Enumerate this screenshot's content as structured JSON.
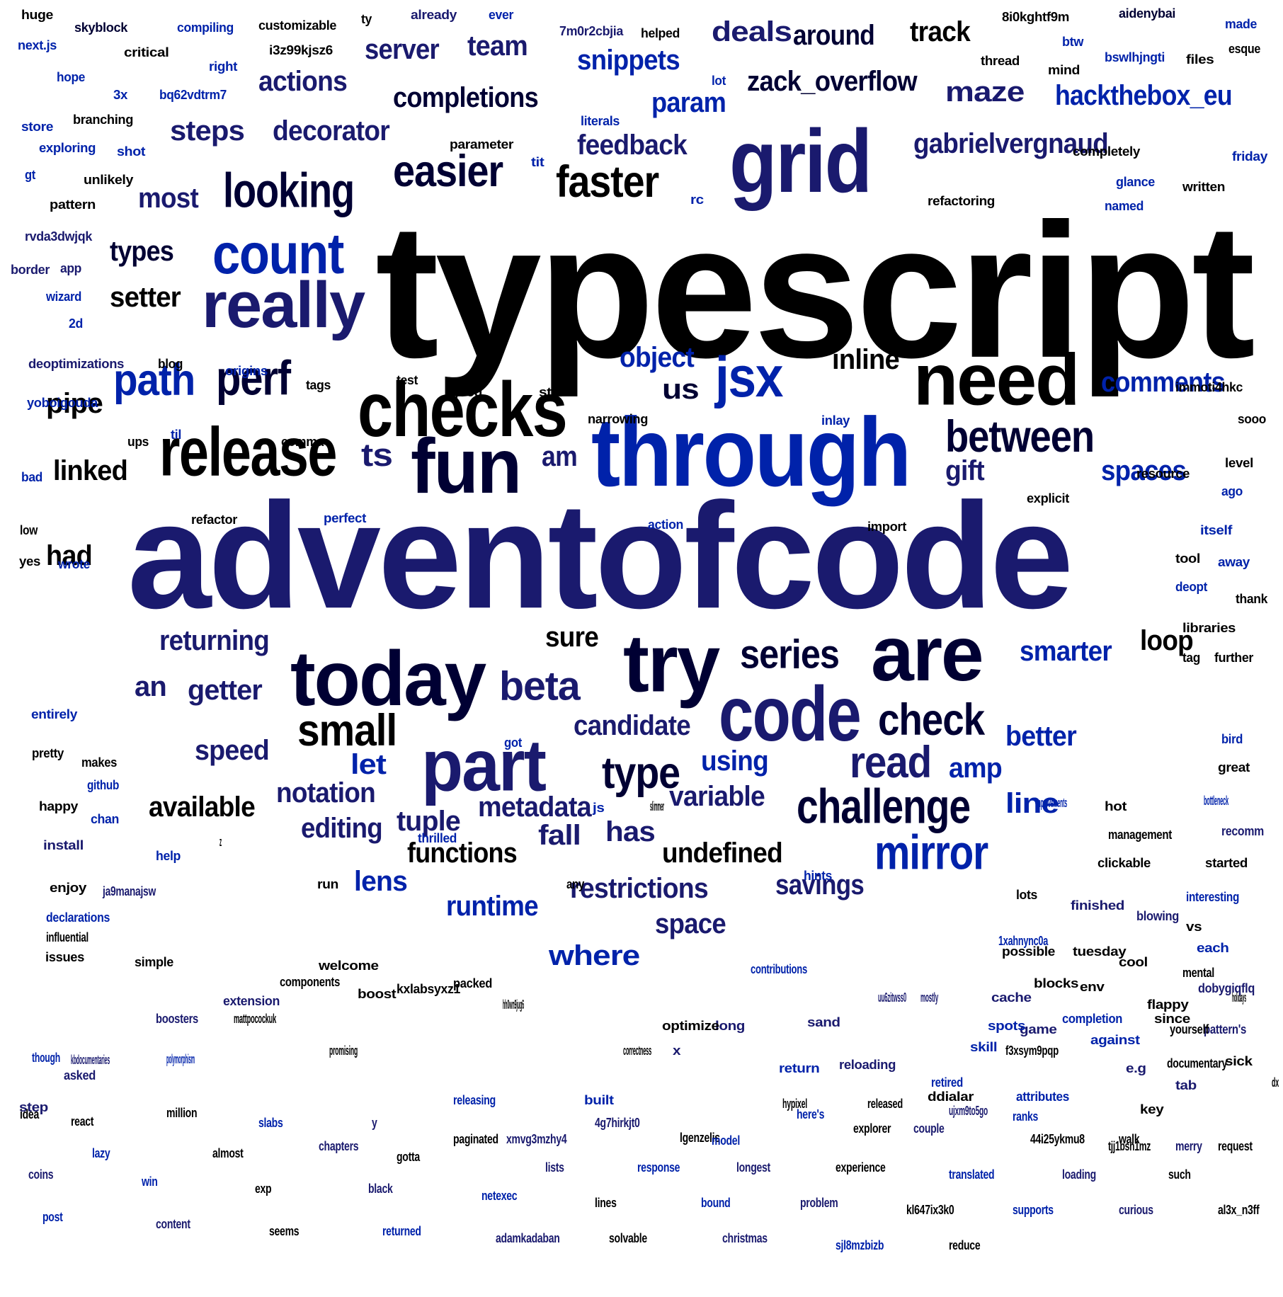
{
  "title": "",
  "palette": [
    "#000000",
    "#000033",
    "#1a1a6e",
    "#000099",
    "#0022aa",
    "#0033aa"
  ],
  "words": [
    "typescript",
    "adventofcode",
    "through",
    "grid",
    "checks",
    "fun",
    "need",
    "release",
    "today",
    "try",
    "are",
    "code",
    "part",
    "count",
    "really",
    "looking",
    "easier",
    "faster",
    "perf",
    "path",
    "jsx",
    "between",
    "challenge",
    "mirror",
    "small",
    "type",
    "check",
    "read",
    "series",
    "beta",
    "deals",
    "around",
    "track",
    "server",
    "team",
    "snippets",
    "actions",
    "completions",
    "zack_overflow",
    "maze",
    "hackthebox_eu",
    "param",
    "steps",
    "decorator",
    "feedback",
    "gabrielvergnaud",
    "most",
    "types",
    "setter",
    "linked",
    "pipe",
    "us",
    "ts",
    "am",
    "object",
    "inline",
    "comments",
    "gift",
    "spaces",
    "had",
    "returning",
    "sure",
    "loop",
    "smarter",
    "getter",
    "an",
    "candidate",
    "speed",
    "let",
    "notation",
    "available",
    "editing",
    "tuple",
    "metadata",
    "variable",
    "fall",
    "has",
    "undefined",
    "functions",
    "restrictions",
    "lens",
    "savings",
    "runtime",
    "space",
    "where",
    "better",
    "line",
    "amp",
    "using",
    "huge",
    "skyblock",
    "compiling",
    "customizable",
    "ty",
    "already",
    "ever",
    "7m0r2cbjia",
    "helped",
    "8i0kghtf9m",
    "aidenybai",
    "made",
    "next.js",
    "critical",
    "i3z99kjsz6",
    "right",
    "btw",
    "thread",
    "mind",
    "bswlhjngti",
    "files",
    "esque",
    "hope",
    "3x",
    "bq62vdtrm7",
    "lot",
    "store",
    "branching",
    "literals",
    "exploring",
    "shot",
    "parameter",
    "tit",
    "completely",
    "friday",
    "gt",
    "unlikely",
    "rc",
    "glance",
    "written",
    "pattern",
    "refactoring",
    "named",
    "rvda3dwjqk",
    "border",
    "app",
    "wizard",
    "2d",
    "deoptimizations",
    "blog",
    "origins",
    "test",
    "tags",
    "good",
    "still",
    "immoti4hkc",
    "yoboigouda",
    "narrowing",
    "inlay",
    "sooo",
    "til",
    "ups",
    "comma",
    "bad",
    "resource",
    "level",
    "ago",
    "explicit",
    "refactor",
    "perfect",
    "low",
    "action",
    "import",
    "itself",
    "yes",
    "wrote",
    "tool",
    "away",
    "deopt",
    "thank",
    "libraries",
    "tag",
    "further",
    "entirely",
    "bird",
    "got",
    "pretty",
    "makes",
    "great",
    "github",
    "happy",
    "chan",
    "js",
    "slimmer",
    "improvements",
    "hot",
    "bottleneck",
    "install",
    "thrilled",
    "z",
    "management",
    "recomm",
    "help",
    "hints",
    "clickable",
    "started",
    "enjoy",
    "ja9manajsw",
    "run",
    "any",
    "lots",
    "finished",
    "interesting",
    "declarations",
    "blowing",
    "vs",
    "tuesday",
    "influential",
    "env",
    "each",
    "cool",
    "possible",
    "issues",
    "mental",
    "simple",
    "blocks",
    "holidays",
    "game",
    "dobygiqflq",
    "pattern's",
    "against",
    "flappy",
    "f3xsym9pqp",
    "yourself",
    "sick",
    "documentary",
    "dx",
    "e.g",
    "tab",
    "retired",
    "skill",
    "ddialar",
    "attributes",
    "ujxm9to5go",
    "return",
    "long",
    "reloading",
    "hypixel",
    "released",
    "x",
    "correctness",
    "uu6zitwss0",
    "mostly",
    "spots",
    "cache",
    "1xahnync0a",
    "contributions",
    "packed",
    "hh0wn9jug6",
    "welcome",
    "components",
    "boost",
    "kxlabsyxz1",
    "extension",
    "optimize",
    "sand",
    "completion",
    "since",
    "boosters",
    "mattpocockuk",
    "kbdocumentaries",
    "polymorphism",
    "promising",
    "though",
    "asked",
    "key",
    "step",
    "tjj1bsn1mz",
    "releasing",
    "built",
    "idea",
    "react",
    "million",
    "slabs",
    "y",
    "paginated",
    "xmvg3mzhy4",
    "4g7hirkjt0",
    "lgenzelis",
    "model",
    "here's",
    "explorer",
    "couple",
    "ranks",
    "44i25ykmu8",
    "walk",
    "merry",
    "request",
    "lazy",
    "almost",
    "chapters",
    "gotta",
    "lists",
    "response",
    "longest",
    "experience",
    "translated",
    "loading",
    "such",
    "coins",
    "win",
    "exp",
    "black",
    "netexec",
    "lines",
    "bound",
    "problem",
    "kl647ix3k0",
    "supports",
    "curious",
    "al3x_n3ff",
    "post",
    "content",
    "seems",
    "returned",
    "adamkadaban",
    "solvable",
    "christmas",
    "sjl8mzbizb",
    "reduce"
  ]
}
